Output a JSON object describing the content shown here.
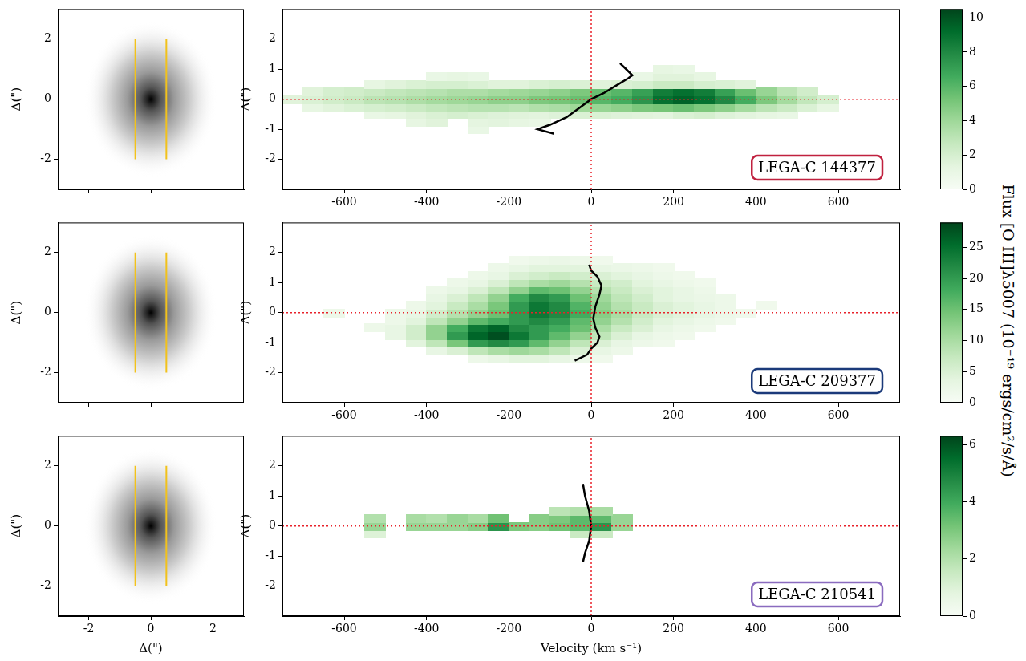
{
  "chart_data": [
    {
      "type": "heatmap",
      "label": "LEGA-C 144377",
      "label_color": "#c0213f",
      "y_label": "Δ(\")",
      "xlim": [
        -750,
        750
      ],
      "xticks": [
        -600,
        -400,
        -200,
        0,
        200,
        400,
        600
      ],
      "ylim": [
        -3,
        3
      ],
      "yticks": [
        -2,
        -1,
        0,
        1,
        2
      ],
      "velocity": [
        -725,
        -675,
        -625,
        -575,
        -525,
        -475,
        -425,
        -375,
        -325,
        -275,
        -225,
        -175,
        -125,
        -75,
        -25,
        25,
        75,
        125,
        175,
        225,
        275,
        325,
        375,
        425,
        475,
        525,
        575
      ],
      "position": [
        -1.0,
        -0.75,
        -0.5,
        -0.25,
        0,
        0.25,
        0.5,
        0.75,
        1.0
      ],
      "flux": [
        [
          null,
          null,
          null,
          null,
          null,
          null,
          null,
          null,
          null,
          1.0,
          null,
          null,
          null,
          null,
          null,
          null,
          null,
          null,
          null,
          null,
          null,
          null,
          null,
          null,
          null,
          null,
          null
        ],
        [
          null,
          null,
          null,
          null,
          null,
          null,
          1.2,
          1.5,
          null,
          1.3,
          1.4,
          1.2,
          1.0,
          null,
          null,
          null,
          null,
          null,
          null,
          null,
          null,
          null,
          null,
          null,
          null,
          null,
          null
        ],
        [
          null,
          null,
          null,
          null,
          1.0,
          1.2,
          1.5,
          1.8,
          2.0,
          1.8,
          1.6,
          1.5,
          1.4,
          1.6,
          1.8,
          1.8,
          1.6,
          1.5,
          1.4,
          1.8,
          2.0,
          1.6,
          1.4,
          1.2,
          1.0,
          null,
          null
        ],
        [
          null,
          1.2,
          1.5,
          1.8,
          2.0,
          2.2,
          2.5,
          2.8,
          3.0,
          3.2,
          3.2,
          3.0,
          3.4,
          3.6,
          4.0,
          4.2,
          4.5,
          5.0,
          5.2,
          5.5,
          5.0,
          4.5,
          3.8,
          3.0,
          2.5,
          1.8,
          1.2
        ],
        [
          1.5,
          1.8,
          2.2,
          2.5,
          3.0,
          3.2,
          3.5,
          3.8,
          4.0,
          4.2,
          4.5,
          4.5,
          5.0,
          5.2,
          5.5,
          6.0,
          6.5,
          7.5,
          9.0,
          9.5,
          9.0,
          8.0,
          6.5,
          5.0,
          3.8,
          2.8,
          2.0
        ],
        [
          null,
          1.5,
          2.0,
          2.2,
          2.5,
          2.8,
          3.0,
          3.2,
          3.5,
          3.5,
          3.8,
          4.0,
          4.2,
          4.5,
          5.0,
          5.5,
          6.0,
          7.0,
          8.5,
          9.0,
          8.5,
          7.0,
          5.5,
          4.2,
          3.0,
          2.2,
          null
        ],
        [
          null,
          null,
          null,
          null,
          1.2,
          1.5,
          1.8,
          2.0,
          2.0,
          1.8,
          1.5,
          1.5,
          1.8,
          2.0,
          1.8,
          1.5,
          1.8,
          2.0,
          2.5,
          2.5,
          2.0,
          1.8,
          1.5,
          null,
          null,
          null,
          null
        ],
        [
          null,
          null,
          null,
          null,
          null,
          null,
          null,
          1.0,
          1.2,
          1.0,
          null,
          null,
          null,
          null,
          null,
          null,
          null,
          1.0,
          1.5,
          1.5,
          1.2,
          null,
          null,
          null,
          null,
          null,
          null
        ],
        [
          null,
          null,
          null,
          null,
          null,
          null,
          null,
          null,
          null,
          null,
          null,
          null,
          null,
          null,
          null,
          null,
          null,
          null,
          1.2,
          1.0,
          null,
          null,
          null,
          null,
          null,
          null,
          null
        ]
      ],
      "curve": {
        "velocity": [
          -90,
          -130,
          -100,
          -60,
          -30,
          0,
          30,
          60,
          90,
          100,
          85,
          70
        ],
        "position": [
          -1.15,
          -1.0,
          -0.85,
          -0.6,
          -0.3,
          0,
          0.2,
          0.45,
          0.7,
          0.8,
          1.0,
          1.2
        ],
        "color": "#000000"
      },
      "reference_lines": {
        "velocity": 0,
        "position": 0,
        "color": "#e8212a",
        "line_style": "dotted"
      },
      "image": {
        "type": "image",
        "y_label": "Δ(\")",
        "tick_labels": "y",
        "xlim": [
          -3,
          3
        ],
        "xticks": [
          -2,
          0,
          2
        ],
        "ylim": [
          -3,
          3
        ],
        "yticks": [
          -2,
          0,
          2
        ],
        "slit": {
          "x": [
            -0.5,
            0.5
          ],
          "y": [
            -2,
            2
          ],
          "color": "#f2c21b"
        }
      },
      "colorbar": {
        "range": [
          0,
          10.5
        ],
        "ticks": [
          0,
          2,
          4,
          6,
          8,
          10
        ]
      }
    },
    {
      "type": "heatmap",
      "label": "LEGA-C 209377",
      "label_color": "#1b3a7a",
      "y_label": "Δ(\")",
      "xlim": [
        -750,
        750
      ],
      "xticks": [
        -600,
        -400,
        -200,
        0,
        200,
        400,
        600
      ],
      "ylim": [
        -3,
        3
      ],
      "yticks": [
        -2,
        -1,
        0,
        1,
        2
      ],
      "velocity": [
        -675,
        -625,
        -575,
        -525,
        -475,
        -425,
        -375,
        -325,
        -275,
        -225,
        -175,
        -125,
        -75,
        -25,
        25,
        75,
        125,
        175,
        225,
        275,
        325,
        375,
        425
      ],
      "position": [
        -1.5,
        -1.25,
        -1.0,
        -0.75,
        -0.5,
        -0.25,
        0,
        0.25,
        0.5,
        0.75,
        1.0,
        1.25,
        1.5,
        1.75
      ],
      "flux": [
        [
          null,
          null,
          null,
          null,
          null,
          null,
          null,
          null,
          2,
          3,
          4,
          4,
          3,
          2,
          1.5,
          null,
          null,
          null,
          null,
          null,
          null,
          null,
          null
        ],
        [
          null,
          null,
          null,
          null,
          null,
          null,
          3,
          5,
          8,
          10,
          11,
          10,
          8,
          5,
          3,
          2,
          null,
          null,
          null,
          null,
          null,
          null,
          null
        ],
        [
          null,
          null,
          null,
          null,
          null,
          4,
          8,
          14,
          20,
          22,
          20,
          16,
          12,
          8,
          5,
          3,
          2,
          1.5,
          null,
          null,
          null,
          null,
          null
        ],
        [
          null,
          null,
          null,
          null,
          3,
          6,
          12,
          20,
          26,
          28,
          24,
          20,
          16,
          12,
          8,
          5,
          3,
          2,
          1.5,
          null,
          null,
          null,
          null
        ],
        [
          null,
          null,
          null,
          2,
          3,
          6,
          12,
          18,
          24,
          26,
          22,
          20,
          18,
          15,
          10,
          7,
          5,
          3,
          2,
          1.5,
          null,
          null,
          null
        ],
        [
          null,
          null,
          null,
          null,
          2,
          4,
          8,
          12,
          16,
          18,
          20,
          22,
          20,
          16,
          12,
          9,
          6,
          4,
          3,
          2,
          1.5,
          null,
          null
        ],
        [
          null,
          2,
          null,
          null,
          2,
          3,
          6,
          9,
          12,
          15,
          20,
          24,
          22,
          18,
          13,
          10,
          7,
          5,
          4,
          3,
          2,
          1.5,
          null
        ],
        [
          null,
          null,
          null,
          null,
          null,
          2,
          4,
          7,
          10,
          14,
          20,
          24,
          22,
          17,
          12,
          9,
          7,
          5,
          4,
          3,
          2,
          null,
          1.5
        ],
        [
          null,
          null,
          null,
          null,
          null,
          null,
          3,
          5,
          8,
          12,
          18,
          22,
          20,
          15,
          11,
          8,
          6,
          4,
          3,
          2.5,
          2,
          null,
          null
        ],
        [
          null,
          null,
          null,
          null,
          null,
          null,
          2,
          3,
          5,
          8,
          12,
          16,
          15,
          12,
          9,
          7,
          5,
          4,
          3,
          2,
          null,
          null,
          null
        ],
        [
          null,
          null,
          null,
          null,
          null,
          null,
          null,
          2,
          3,
          5,
          8,
          10,
          11,
          9,
          7,
          6,
          4,
          3,
          2,
          1.5,
          null,
          null,
          null
        ],
        [
          null,
          null,
          null,
          null,
          null,
          null,
          null,
          null,
          2,
          3,
          5,
          6,
          7,
          6,
          5,
          4,
          3,
          2,
          1.5,
          null,
          null,
          null,
          null
        ],
        [
          null,
          null,
          null,
          null,
          null,
          null,
          null,
          null,
          null,
          2,
          3,
          4,
          4,
          4,
          3,
          2.5,
          2,
          1.5,
          null,
          null,
          null,
          null,
          null
        ],
        [
          null,
          null,
          null,
          null,
          null,
          null,
          null,
          null,
          null,
          null,
          1.5,
          2,
          2.5,
          2,
          1.5,
          null,
          null,
          null,
          null,
          null,
          null,
          null,
          null
        ]
      ],
      "curve": {
        "velocity": [
          -40,
          -10,
          0,
          15,
          20,
          10,
          5,
          10,
          20,
          25,
          15,
          0,
          -5
        ],
        "position": [
          -1.6,
          -1.4,
          -1.2,
          -1.0,
          -0.8,
          -0.5,
          -0.2,
          0.2,
          0.6,
          0.9,
          1.2,
          1.4,
          1.6
        ],
        "color": "#000000"
      },
      "reference_lines": {
        "velocity": 0,
        "position": 0,
        "color": "#e8212a",
        "line_style": "dotted"
      },
      "image": {
        "type": "image",
        "y_label": "Δ(\")",
        "tick_labels": "y",
        "xlim": [
          -3,
          3
        ],
        "xticks": [
          -2,
          0,
          2
        ],
        "ylim": [
          -3,
          3
        ],
        "yticks": [
          -2,
          0,
          2
        ],
        "slit": {
          "x": [
            -0.5,
            0.5
          ],
          "y": [
            -2,
            2
          ],
          "color": "#f2c21b"
        }
      },
      "colorbar": {
        "range": [
          0,
          29
        ],
        "ticks": [
          0,
          5,
          10,
          15,
          20,
          25
        ],
        "label": "Flux [O III]λ5007 (10⁻¹⁹ ergs/cm²/s/Å)"
      }
    },
    {
      "type": "heatmap",
      "label": "LEGA-C 210541",
      "label_color": "#8a6bbf",
      "x_label": "Velocity (km s⁻¹)",
      "y_label": "Δ(\")",
      "xlim": [
        -750,
        750
      ],
      "xticks": [
        -600,
        -400,
        -200,
        0,
        200,
        400,
        600
      ],
      "ylim": [
        -3,
        3
      ],
      "yticks": [
        -2,
        -1,
        0,
        1,
        2
      ],
      "velocity": [
        -575,
        -525,
        -475,
        -425,
        -375,
        -325,
        -275,
        -225,
        -175,
        -125,
        -75,
        -25,
        25,
        75
      ],
      "position": [
        -0.25,
        0,
        0.25,
        0.5
      ],
      "flux": [
        [
          null,
          1,
          null,
          null,
          null,
          null,
          null,
          null,
          null,
          null,
          null,
          1.5,
          1.5,
          null
        ],
        [
          null,
          2.5,
          null,
          2.5,
          2.5,
          2.5,
          2.8,
          4.5,
          3.0,
          2.8,
          3.2,
          3.5,
          4.5,
          2.5
        ],
        [
          null,
          2.0,
          null,
          2.2,
          2.0,
          2.5,
          2.2,
          3.2,
          null,
          2.8,
          3.0,
          3.5,
          3.5,
          2.5
        ],
        [
          null,
          null,
          null,
          null,
          null,
          null,
          null,
          null,
          null,
          null,
          1.8,
          2.0,
          2.2,
          null
        ]
      ],
      "curve": {
        "velocity": [
          -20,
          -15,
          -5,
          0,
          -5,
          -15,
          -20
        ],
        "position": [
          -1.2,
          -0.9,
          -0.5,
          0,
          0.5,
          1.0,
          1.4
        ],
        "color": "#000000"
      },
      "reference_lines": {
        "velocity": 0,
        "position": 0,
        "color": "#e8212a",
        "line_style": "dotted"
      },
      "image": {
        "type": "image",
        "x_label": "Δ(\")",
        "y_label": "Δ(\")",
        "xlim": [
          -3,
          3
        ],
        "xticks": [
          -2,
          0,
          2
        ],
        "ylim": [
          -3,
          3
        ],
        "yticks": [
          -2,
          0,
          2
        ],
        "slit": {
          "x": [
            -0.5,
            0.5
          ],
          "y": [
            -2,
            2
          ],
          "color": "#f2c21b"
        }
      },
      "colorbar": {
        "range": [
          0,
          6.3
        ],
        "ticks": [
          0,
          2,
          4,
          6
        ]
      }
    }
  ]
}
